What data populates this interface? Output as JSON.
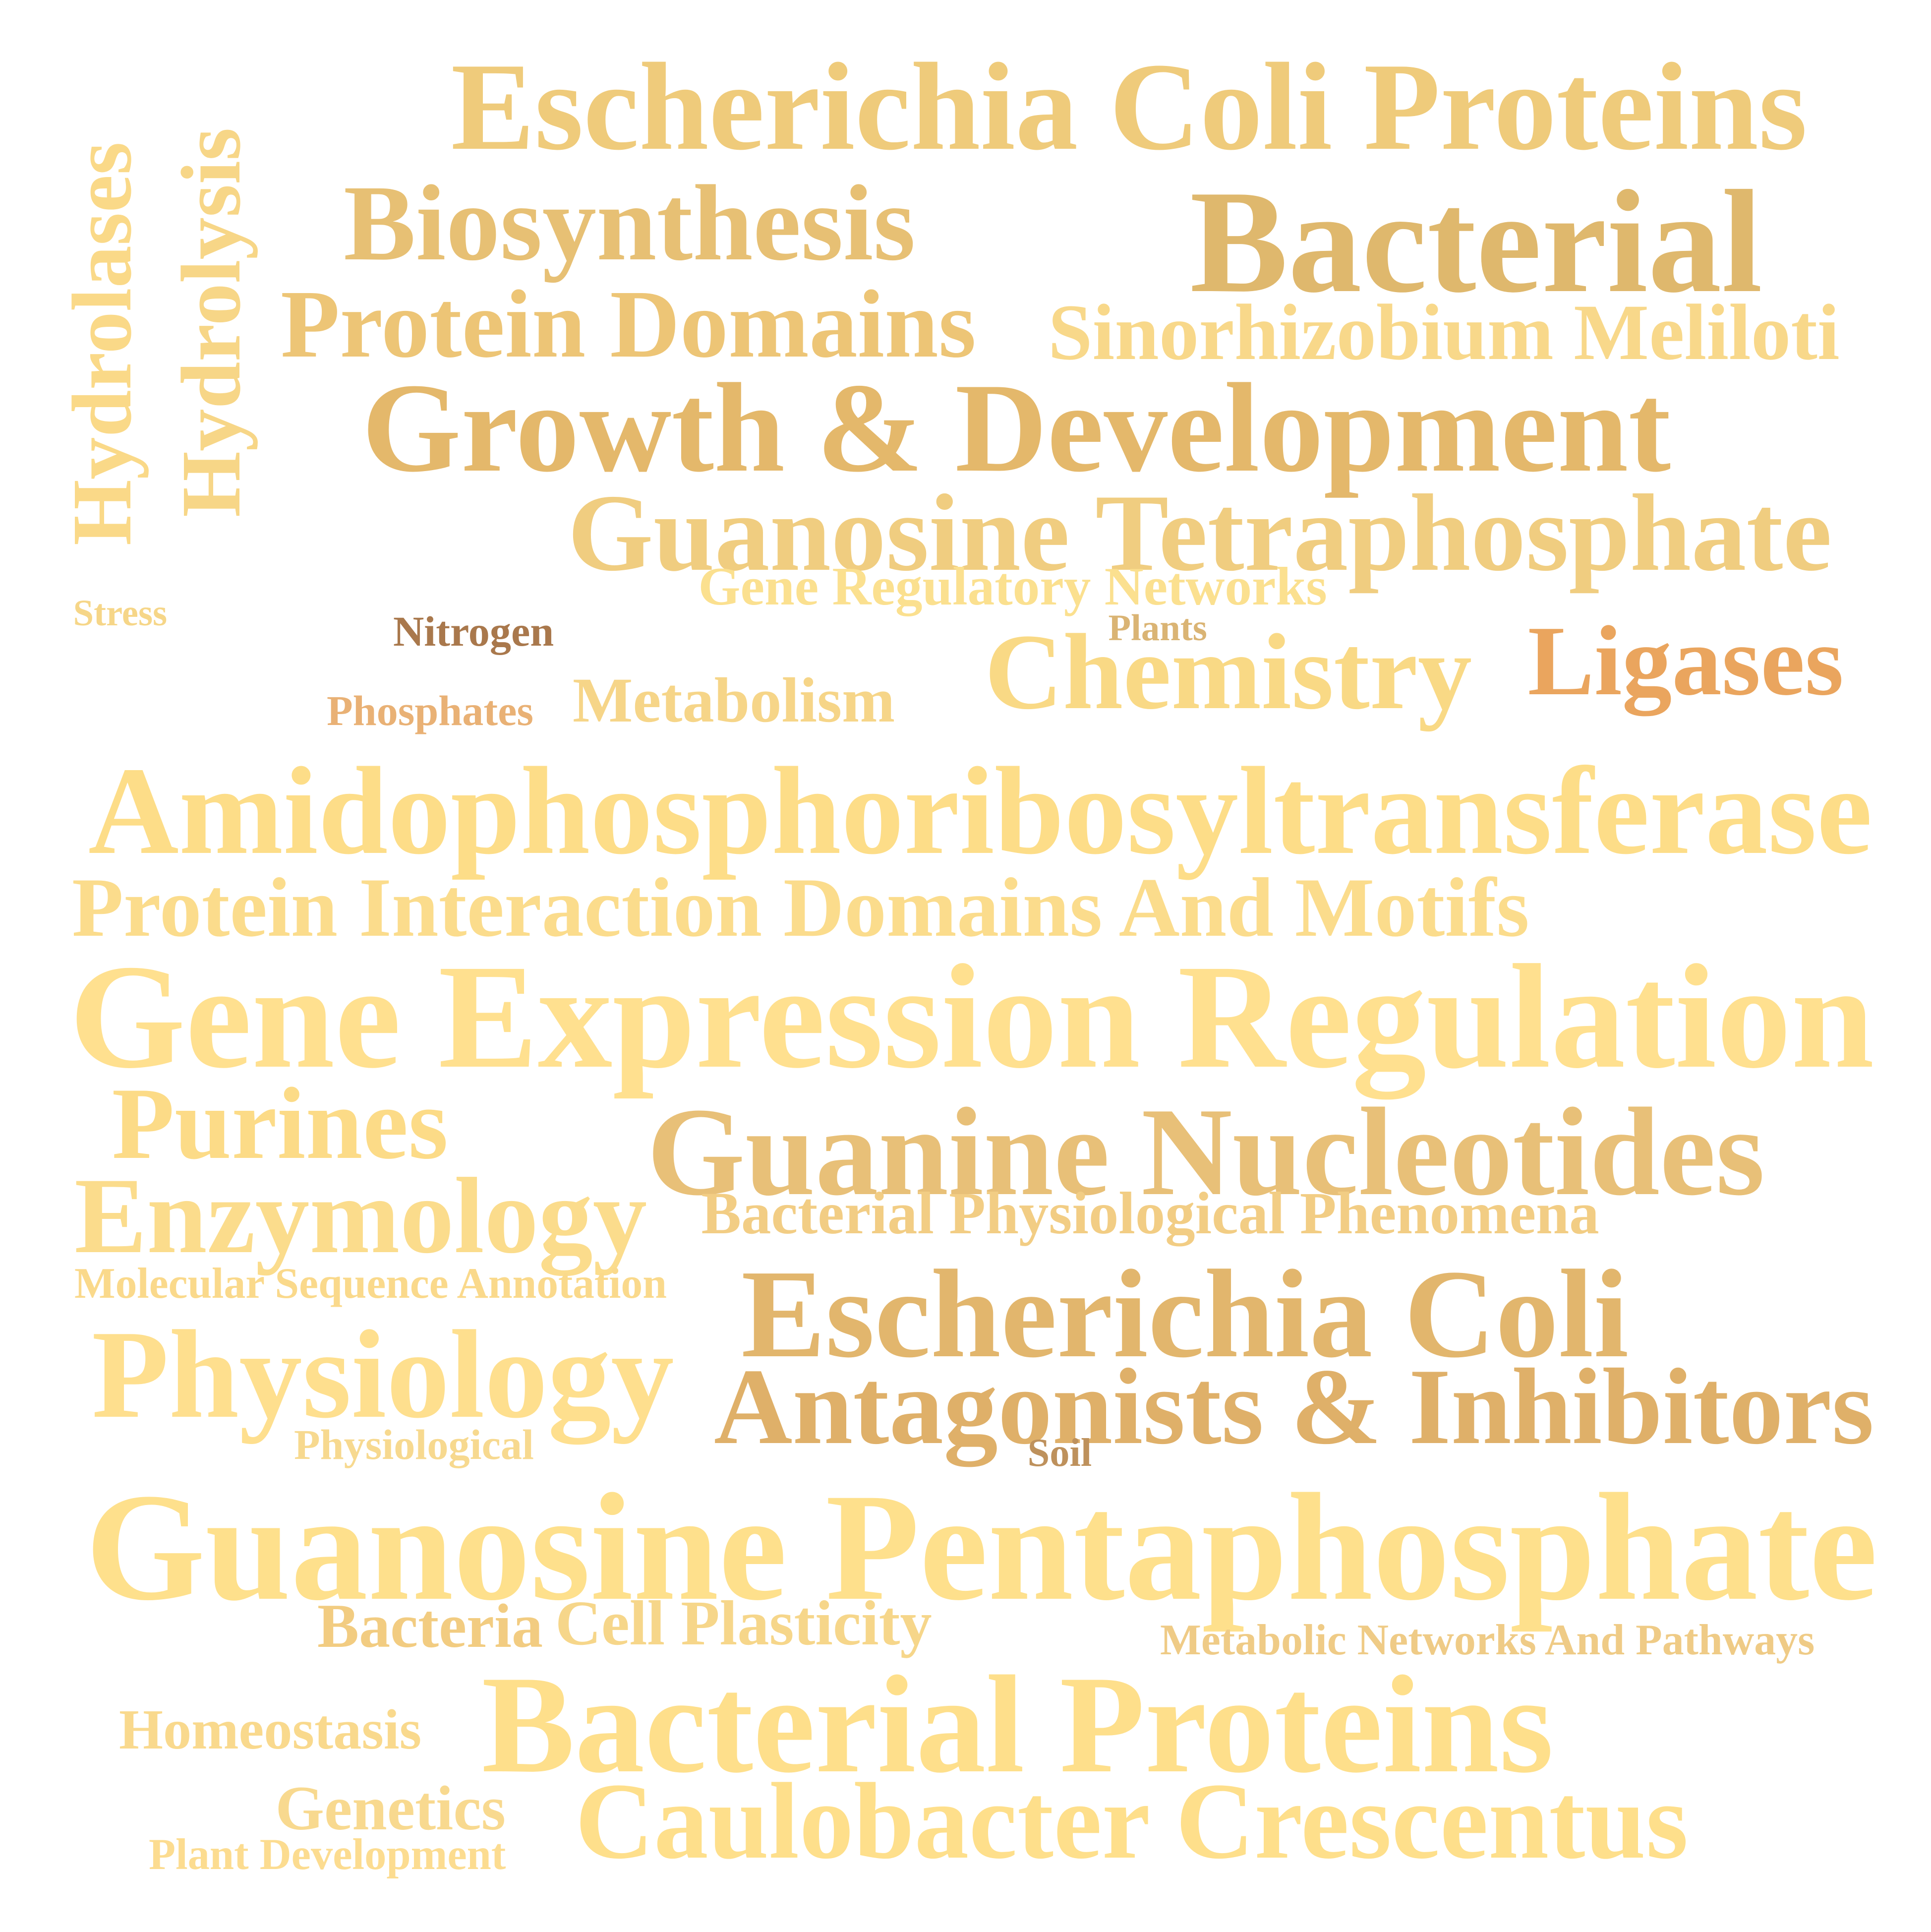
{
  "words": [
    {
      "id": "w01",
      "text": "Escherichia Coli Proteins",
      "color": "#EFCB7B",
      "rotated": false
    },
    {
      "id": "w02",
      "text": "Biosynthesis",
      "color": "#E7C074",
      "rotated": false
    },
    {
      "id": "w03",
      "text": "Bacterial",
      "color": "#DFB86D",
      "rotated": false
    },
    {
      "id": "w04",
      "text": "Protein Domains",
      "color": "#EDC576",
      "rotated": false
    },
    {
      "id": "w05",
      "text": "Sinorhizobium Meliloti",
      "color": "#F8D88A",
      "rotated": false
    },
    {
      "id": "w06",
      "text": "Growth & Development",
      "color": "#E4B86B",
      "rotated": false
    },
    {
      "id": "w07",
      "text": "Guanosine Tetraphosphate",
      "color": "#F0CD80",
      "rotated": false
    },
    {
      "id": "w08",
      "text": "Gene Regulatory Networks",
      "color": "#FBE08F",
      "rotated": false
    },
    {
      "id": "w09",
      "text": "Hydrolases",
      "color": "#FAD988",
      "rotated": true
    },
    {
      "id": "w10",
      "text": "Hydrolysis",
      "color": "#F7D687",
      "rotated": true
    },
    {
      "id": "w11",
      "text": "Stress",
      "color": "#F6D688",
      "rotated": false
    },
    {
      "id": "w12",
      "text": "Nitrogen",
      "color": "#A9784C",
      "rotated": false
    },
    {
      "id": "w13",
      "text": "Plants",
      "color": "#DAB474",
      "rotated": false
    },
    {
      "id": "w14",
      "text": "Chemistry",
      "color": "#F9D985",
      "rotated": false
    },
    {
      "id": "w15",
      "text": "Ligases",
      "color": "#EAA55E",
      "rotated": false
    },
    {
      "id": "w16",
      "text": "Phosphates",
      "color": "#E9B175",
      "rotated": false
    },
    {
      "id": "w17",
      "text": "Metabolism",
      "color": "#F6D588",
      "rotated": false
    },
    {
      "id": "w18",
      "text": "Amidophosphoribosyltransferase",
      "color": "#FDDD88",
      "rotated": false
    },
    {
      "id": "w19",
      "text": "Protein Interaction Domains And Motifs",
      "color": "#FBDC8C",
      "rotated": false
    },
    {
      "id": "w20",
      "text": "Gene Expression Regulation",
      "color": "#FFE08F",
      "rotated": false
    },
    {
      "id": "w21",
      "text": "Purines",
      "color": "#FCDB87",
      "rotated": false
    },
    {
      "id": "w22",
      "text": "Guanine Nucleotides",
      "color": "#E8C078",
      "rotated": false
    },
    {
      "id": "w23",
      "text": "Enzymology",
      "color": "#FBDC8C",
      "rotated": false
    },
    {
      "id": "w24",
      "text": "Bacterial Physiological Phenomena",
      "color": "#F2CD84",
      "rotated": false
    },
    {
      "id": "w25",
      "text": "Molecular Sequence Annotation",
      "color": "#FAD98B",
      "rotated": false
    },
    {
      "id": "w26",
      "text": "Escherichia Coli",
      "color": "#E2B66D",
      "rotated": false
    },
    {
      "id": "w27",
      "text": "Physiology",
      "color": "#FEDF8E",
      "rotated": false
    },
    {
      "id": "w28",
      "text": "Antagonists & Inhibitors",
      "color": "#DFB069",
      "rotated": false
    },
    {
      "id": "w29",
      "text": "Physiological",
      "color": "#F7D98F",
      "rotated": false
    },
    {
      "id": "w30",
      "text": "Soil",
      "color": "#BE915C",
      "rotated": false
    },
    {
      "id": "w31",
      "text": "Guanosine Pentaphosphate",
      "color": "#FEE08C",
      "rotated": false
    },
    {
      "id": "w32",
      "text": "Bacteria",
      "color": "#F2CC81",
      "rotated": false
    },
    {
      "id": "w33",
      "text": "Cell Plasticity",
      "color": "#F6D68A",
      "rotated": false
    },
    {
      "id": "w34",
      "text": "Metabolic Networks And Pathways",
      "color": "#EFCB86",
      "rotated": false
    },
    {
      "id": "w35",
      "text": "Homeostasis",
      "color": "#F9D98D",
      "rotated": false
    },
    {
      "id": "w36",
      "text": "Bacterial Proteins",
      "color": "#FEDF8B",
      "rotated": false
    },
    {
      "id": "w37",
      "text": "Genetics",
      "color": "#F8D98F",
      "rotated": false
    },
    {
      "id": "w38",
      "text": "Caulobacter Crescentus",
      "color": "#FEDF8B",
      "rotated": false
    },
    {
      "id": "w39",
      "text": "Plant Development",
      "color": "#FCDC90",
      "rotated": false
    }
  ]
}
